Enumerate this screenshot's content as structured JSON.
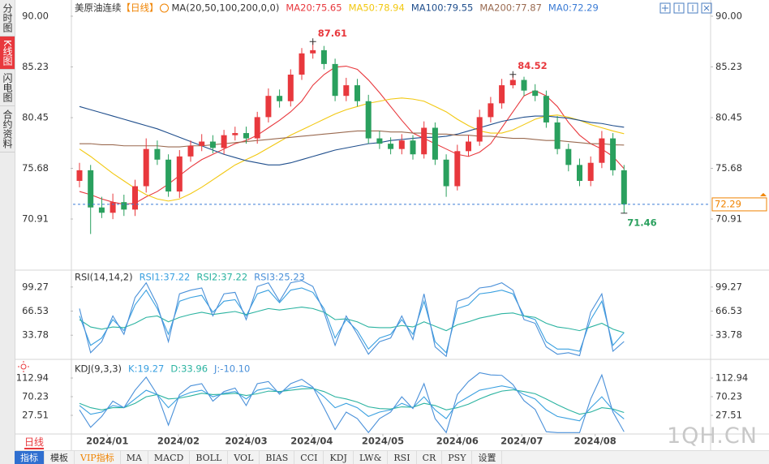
{
  "sidebar_tabs": [
    "分时图",
    "K线图",
    "闪电图",
    "合约资料"
  ],
  "toolbar": {
    "period": "日线",
    "buttons": [
      "指标",
      "模板",
      "VIP指标",
      "MA",
      "MACD",
      "BOLL",
      "VOL",
      "BIAS",
      "CCI",
      "KDJ",
      "LW&",
      "RSI",
      "CR",
      "PSY",
      "设置"
    ]
  },
  "watermark": "1QH.CN",
  "chart_data": [
    {
      "type": "candlestick",
      "title": "美原油连续",
      "period": "【日线】",
      "indicator": "MA(20,50,100,200,0,0)",
      "legend_extra": {
        "label": "MA0:72.29",
        "color": "#3a7bd5"
      },
      "up_color": "#e8383d",
      "down_color": "#2aa05e",
      "open": [
        74.5,
        75.5,
        72.0,
        71.5,
        72.5,
        71.8,
        74.0,
        77.5,
        76.5,
        73.5,
        76.8,
        77.8,
        78.2,
        77.6,
        78.8,
        79.0,
        78.5,
        80.5,
        82.5,
        82.0,
        84.5,
        86.5,
        86.8,
        85.5,
        82.5,
        83.5,
        82.0,
        78.5,
        78.0,
        77.5,
        78.3,
        77.0,
        79.5,
        76.5,
        74.0,
        77.3,
        78.2,
        80.5,
        81.8,
        83.5,
        84.0,
        83.0,
        82.5,
        80.0,
        77.5,
        76.0,
        74.5,
        76.2,
        78.5,
        75.5
      ],
      "high": [
        76.2,
        76.0,
        73.0,
        73.3,
        73.2,
        74.6,
        78.5,
        78.3,
        77.0,
        77.4,
        78.3,
        78.9,
        78.8,
        79.3,
        79.6,
        79.6,
        81.0,
        83.2,
        83.1,
        85.0,
        87.0,
        87.61,
        87.2,
        86.0,
        84.2,
        84.1,
        82.6,
        79.2,
        78.6,
        78.9,
        78.8,
        80.1,
        80.0,
        77.0,
        77.9,
        78.8,
        81.2,
        82.4,
        84.1,
        84.52,
        84.3,
        83.6,
        83.0,
        80.6,
        78.0,
        76.6,
        76.8,
        79.2,
        79.0,
        76.0
      ],
      "low": [
        73.9,
        69.5,
        71.0,
        70.9,
        71.2,
        71.2,
        73.4,
        76.0,
        73.0,
        72.9,
        76.3,
        77.3,
        77.1,
        77.0,
        78.3,
        78.0,
        78.0,
        80.0,
        81.4,
        81.5,
        84.0,
        86.0,
        85.0,
        82.0,
        82.0,
        81.5,
        78.0,
        77.5,
        77.0,
        77.0,
        76.5,
        76.6,
        76.0,
        73.0,
        73.6,
        76.8,
        77.8,
        80.0,
        81.3,
        83.2,
        82.5,
        82.0,
        79.5,
        77.0,
        75.4,
        74.0,
        74.0,
        75.7,
        75.0,
        71.46
      ],
      "close": [
        75.5,
        72.0,
        71.5,
        72.5,
        71.8,
        74.0,
        77.5,
        76.5,
        73.5,
        76.8,
        77.8,
        78.2,
        77.6,
        78.8,
        79.0,
        78.5,
        80.5,
        82.5,
        82.0,
        84.5,
        86.5,
        86.8,
        85.5,
        82.5,
        83.5,
        82.0,
        78.5,
        78.0,
        77.5,
        78.3,
        77.0,
        79.5,
        76.5,
        74.0,
        77.3,
        78.2,
        80.5,
        81.8,
        83.5,
        84.0,
        83.0,
        82.5,
        80.0,
        77.5,
        76.0,
        74.5,
        76.2,
        78.5,
        75.5,
        72.29
      ],
      "series": [
        {
          "label": "MA20:75.65",
          "color": "#e8383d",
          "values": [
            73.5,
            73.2,
            72.8,
            72.5,
            72.3,
            72.4,
            73.0,
            73.5,
            74.2,
            75.0,
            75.8,
            76.5,
            77.0,
            77.5,
            78.0,
            78.3,
            78.8,
            79.5,
            80.2,
            81.0,
            82.0,
            83.5,
            84.5,
            85.2,
            85.3,
            85.0,
            84.0,
            82.8,
            81.5,
            80.2,
            79.0,
            78.5,
            78.0,
            77.5,
            77.0,
            76.8,
            77.2,
            78.0,
            79.5,
            81.0,
            82.5,
            83.0,
            82.5,
            81.5,
            80.0,
            78.8,
            78.0,
            77.5,
            76.8,
            75.65
          ]
        },
        {
          "label": "MA50:78.94",
          "color": "#f2c811",
          "values": [
            77.5,
            76.8,
            76.0,
            75.2,
            74.5,
            73.8,
            73.2,
            72.8,
            72.6,
            72.8,
            73.3,
            73.9,
            74.6,
            75.3,
            76.0,
            76.5,
            77.0,
            77.6,
            78.2,
            78.8,
            79.3,
            79.8,
            80.3,
            80.8,
            81.2,
            81.5,
            81.8,
            82.0,
            82.2,
            82.3,
            82.2,
            82.0,
            81.5,
            81.0,
            80.3,
            79.7,
            79.2,
            79.0,
            79.0,
            79.3,
            79.8,
            80.3,
            80.6,
            80.7,
            80.5,
            80.2,
            79.8,
            79.5,
            79.2,
            78.94
          ]
        },
        {
          "label": "MA100:79.55",
          "color": "#1f4e8c",
          "values": [
            81.5,
            81.2,
            80.9,
            80.6,
            80.3,
            80.0,
            79.7,
            79.4,
            79.0,
            78.6,
            78.2,
            77.8,
            77.4,
            77.0,
            76.7,
            76.4,
            76.2,
            76.0,
            76.0,
            76.2,
            76.5,
            76.8,
            77.1,
            77.4,
            77.6,
            77.8,
            78.0,
            78.1,
            78.3,
            78.4,
            78.5,
            78.6,
            78.6,
            78.7,
            78.9,
            79.2,
            79.5,
            79.8,
            80.1,
            80.3,
            80.5,
            80.6,
            80.6,
            80.5,
            80.4,
            80.2,
            80.0,
            79.9,
            79.7,
            79.55
          ]
        },
        {
          "label": "MA200:77.87",
          "color": "#9a6a50",
          "values": [
            78.0,
            78.0,
            77.9,
            77.9,
            77.8,
            77.8,
            77.8,
            77.8,
            77.7,
            77.7,
            77.8,
            77.8,
            77.9,
            78.0,
            78.1,
            78.2,
            78.3,
            78.4,
            78.5,
            78.6,
            78.7,
            78.8,
            78.9,
            79.0,
            79.1,
            79.2,
            79.2,
            79.2,
            79.1,
            79.1,
            79.0,
            79.0,
            78.9,
            78.9,
            78.8,
            78.8,
            78.7,
            78.7,
            78.6,
            78.5,
            78.5,
            78.4,
            78.3,
            78.3,
            78.2,
            78.1,
            78.0,
            78.0,
            77.9,
            77.87
          ]
        }
      ],
      "ylim": [
        66.33,
        90.76
      ],
      "yticks": [
        {
          "value": 70.91,
          "label": "70.91"
        },
        75.68,
        80.45,
        85.23,
        {
          "value": 90,
          "label": "90.00"
        }
      ],
      "last_price": 72.29,
      "annotations": {
        "high": 87.61,
        "high2": 84.52,
        "low": 71.46
      },
      "xticks": [
        {
          "value": 2.5,
          "label": "2024/01"
        },
        {
          "value": 8.9,
          "label": "2024/02"
        },
        {
          "value": 15.0,
          "label": "2024/03"
        },
        {
          "value": 20.9,
          "label": "2024/04"
        },
        {
          "value": 27.3,
          "label": "2024/05"
        },
        {
          "value": 34.0,
          "label": "2024/06"
        },
        {
          "value": 39.8,
          "label": "2024/07"
        },
        {
          "value": 46.4,
          "label": "2024/08"
        }
      ]
    },
    {
      "type": "line",
      "title": "RSI(14,14,2)",
      "ylim": [
        4.3,
        118.9
      ],
      "yticks": [
        33.78,
        66.53,
        99.27
      ],
      "series": [
        {
          "label": "RSI1:37.22",
          "color": "#3aa0e0",
          "values": [
            60,
            20,
            30,
            55,
            40,
            75,
            95,
            70,
            35,
            80,
            85,
            88,
            65,
            80,
            82,
            60,
            90,
            95,
            78,
            95,
            98,
            92,
            70,
            30,
            55,
            40,
            15,
            30,
            35,
            55,
            35,
            80,
            25,
            10,
            70,
            75,
            90,
            92,
            95,
            90,
            60,
            55,
            25,
            15,
            15,
            12,
            55,
            80,
            20,
            37.22
          ]
        },
        {
          "label": "RSI2:37.22",
          "color": "#2bb3a0",
          "values": [
            55,
            45,
            42,
            45,
            44,
            50,
            58,
            60,
            52,
            58,
            62,
            65,
            62,
            64,
            66,
            62,
            66,
            70,
            68,
            70,
            72,
            70,
            65,
            55,
            56,
            52,
            45,
            44,
            44,
            47,
            45,
            52,
            46,
            40,
            48,
            52,
            57,
            60,
            63,
            64,
            60,
            58,
            50,
            45,
            43,
            40,
            45,
            50,
            42,
            37.22
          ]
        },
        {
          "label": "RSI3:25.23",
          "color": "#4a90d9",
          "values": [
            70,
            10,
            25,
            60,
            35,
            85,
            105,
            75,
            25,
            90,
            95,
            98,
            60,
            90,
            92,
            55,
            100,
            105,
            80,
            105,
            108,
            100,
            65,
            20,
            60,
            35,
            8,
            25,
            30,
            60,
            28,
            90,
            18,
            5,
            80,
            85,
            98,
            100,
            105,
            95,
            55,
            50,
            18,
            8,
            10,
            6,
            65,
            90,
            12,
            25.23
          ]
        }
      ]
    },
    {
      "type": "line",
      "title": "KDJ(9,3,3)",
      "ylim": [
        -15.2,
        146.4
      ],
      "yticks": [
        27.51,
        70.23,
        112.94
      ],
      "series": [
        {
          "label": "K:19.27",
          "color": "#3aa0e0",
          "values": [
            50,
            30,
            35,
            50,
            45,
            65,
            85,
            75,
            45,
            70,
            80,
            85,
            70,
            78,
            82,
            65,
            85,
            90,
            80,
            90,
            95,
            90,
            70,
            45,
            55,
            45,
            25,
            35,
            40,
            55,
            45,
            70,
            40,
            20,
            55,
            70,
            85,
            90,
            95,
            90,
            75,
            65,
            40,
            25,
            20,
            15,
            45,
            70,
            40,
            19.27
          ]
        },
        {
          "label": "D:33.96",
          "color": "#2bb3a0",
          "values": [
            55,
            45,
            40,
            45,
            45,
            55,
            70,
            75,
            65,
            67,
            72,
            78,
            75,
            76,
            78,
            73,
            77,
            83,
            82,
            85,
            88,
            89,
            82,
            70,
            65,
            58,
            47,
            43,
            42,
            47,
            46,
            55,
            50,
            40,
            45,
            53,
            65,
            75,
            83,
            86,
            82,
            77,
            65,
            52,
            40,
            30,
            35,
            45,
            42,
            33.96
          ]
        },
        {
          "label": "J:-10.10",
          "color": "#4a90d9",
          "values": [
            40,
            0,
            25,
            60,
            45,
            85,
            115,
            75,
            5,
            75,
            95,
            100,
            60,
            82,
            90,
            50,
            100,
            105,
            76,
            100,
            110,
            92,
            45,
            -5,
            35,
            20,
            -12,
            20,
            35,
            70,
            43,
            100,
            20,
            -12,
            75,
            105,
            125,
            120,
            119,
            98,
            61,
            41,
            -10,
            -12,
            -12,
            -12,
            65,
            120,
            35,
            -10.1
          ]
        }
      ]
    }
  ]
}
